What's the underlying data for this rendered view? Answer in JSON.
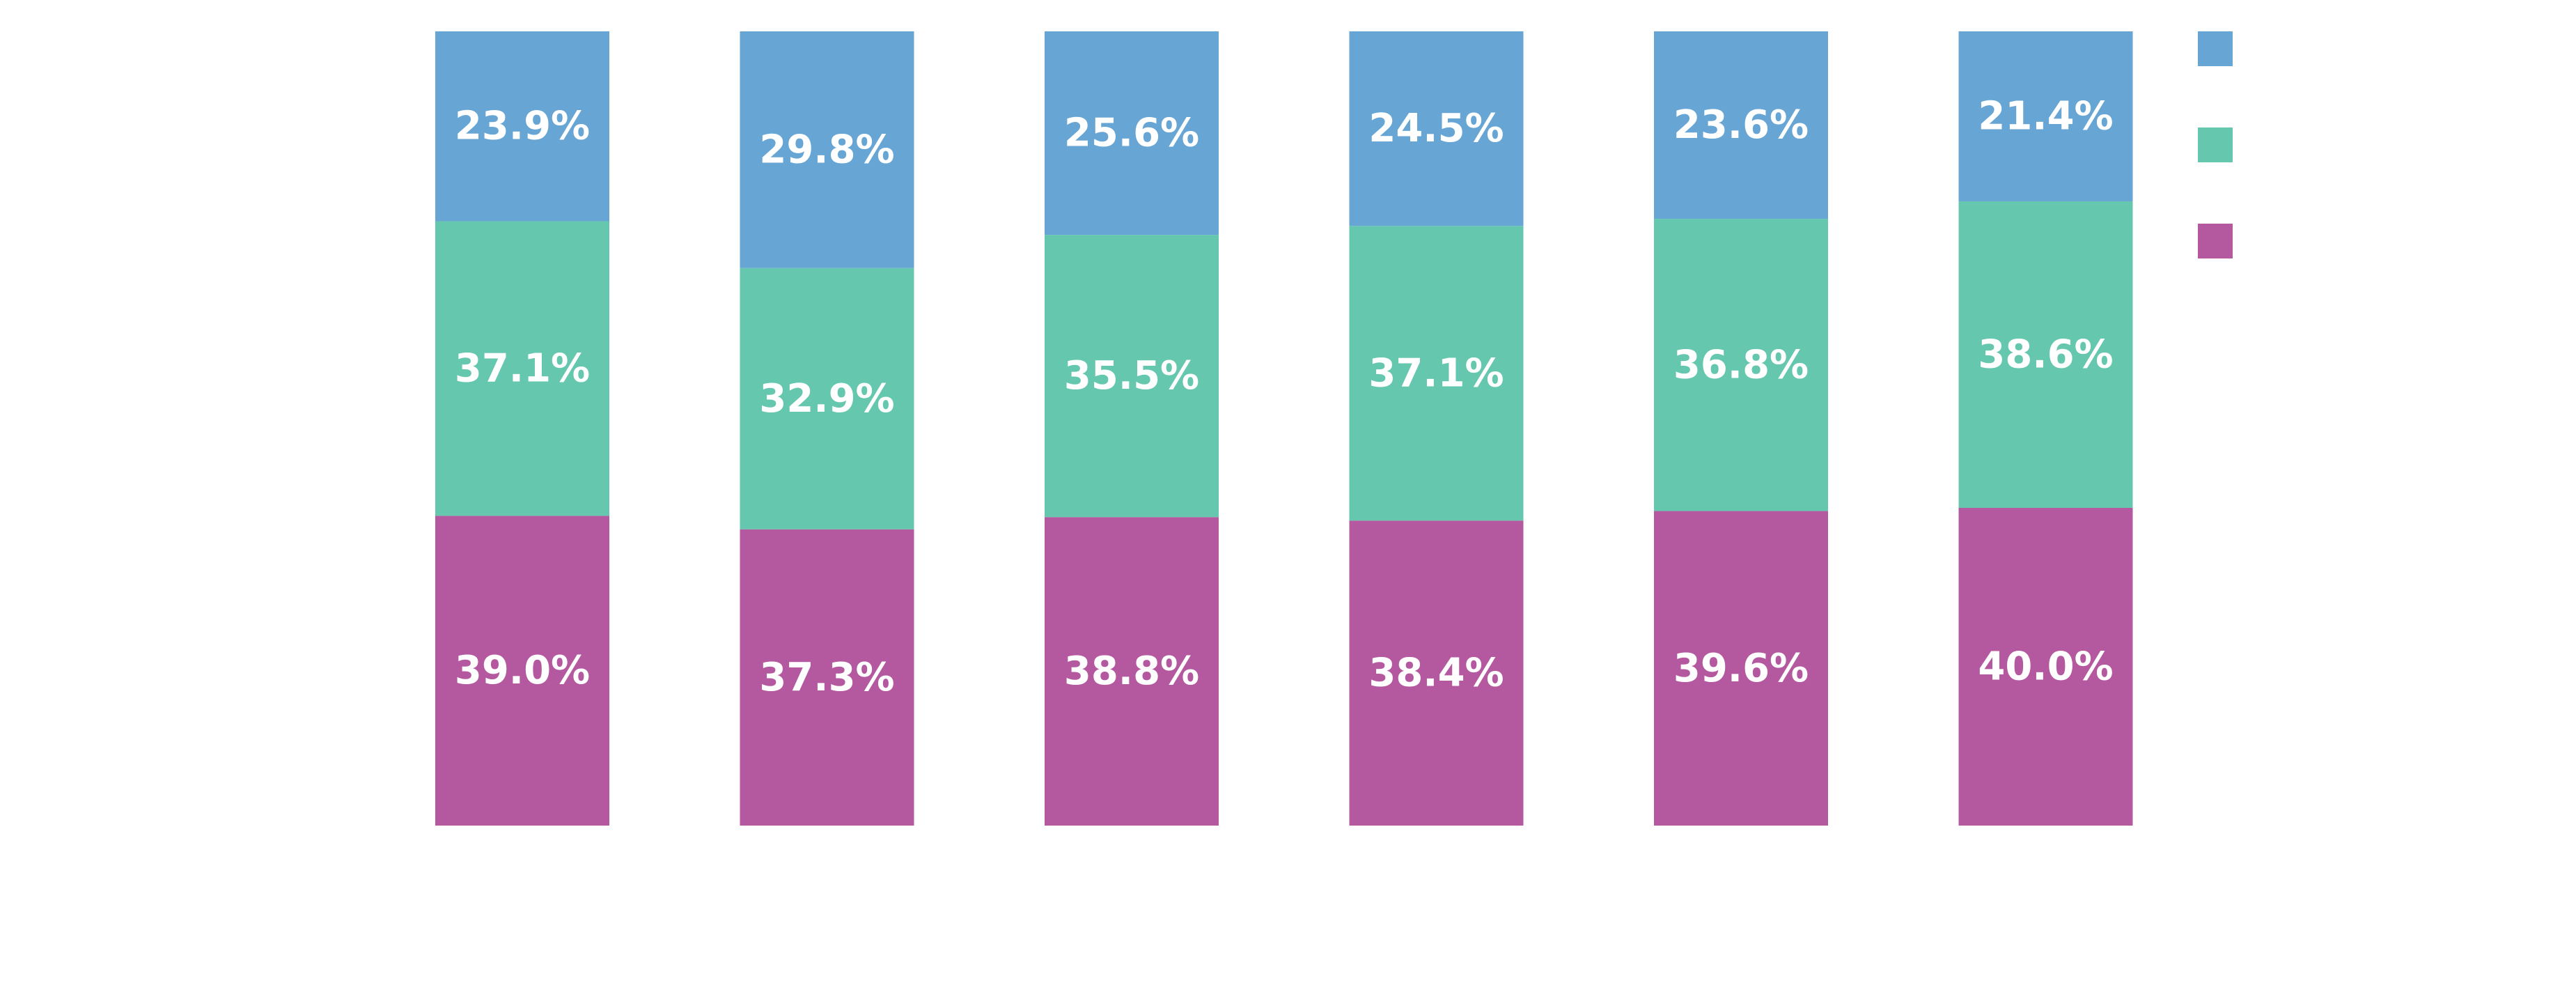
{
  "chart_data": {
    "type": "bar",
    "stacked": true,
    "normalized": true,
    "categories": [
      "",
      "",
      "",
      "",
      "",
      ""
    ],
    "series": [
      {
        "color": "#b4589f",
        "values": [
          39.0,
          37.3,
          38.8,
          38.4,
          39.6,
          40.0
        ],
        "labels": [
          "39.0%",
          "37.3%",
          "38.8%",
          "38.4%",
          "39.6%",
          "40.0%"
        ]
      },
      {
        "color": "#66c7af",
        "values": [
          37.1,
          32.9,
          35.5,
          37.1,
          36.8,
          38.6
        ],
        "labels": [
          "37.1%",
          "32.9%",
          "35.5%",
          "37.1%",
          "36.8%",
          "38.6%"
        ]
      },
      {
        "color": "#66a5d4",
        "values": [
          23.9,
          29.8,
          25.6,
          24.5,
          23.6,
          21.4
        ],
        "labels": [
          "23.9%",
          "29.8%",
          "25.6%",
          "24.5%",
          "23.6%",
          "21.4%"
        ]
      }
    ],
    "ylim": [
      0,
      100
    ],
    "grid": false,
    "legend": {
      "position": "top-right",
      "entries": [
        "",
        "",
        ""
      ]
    }
  }
}
